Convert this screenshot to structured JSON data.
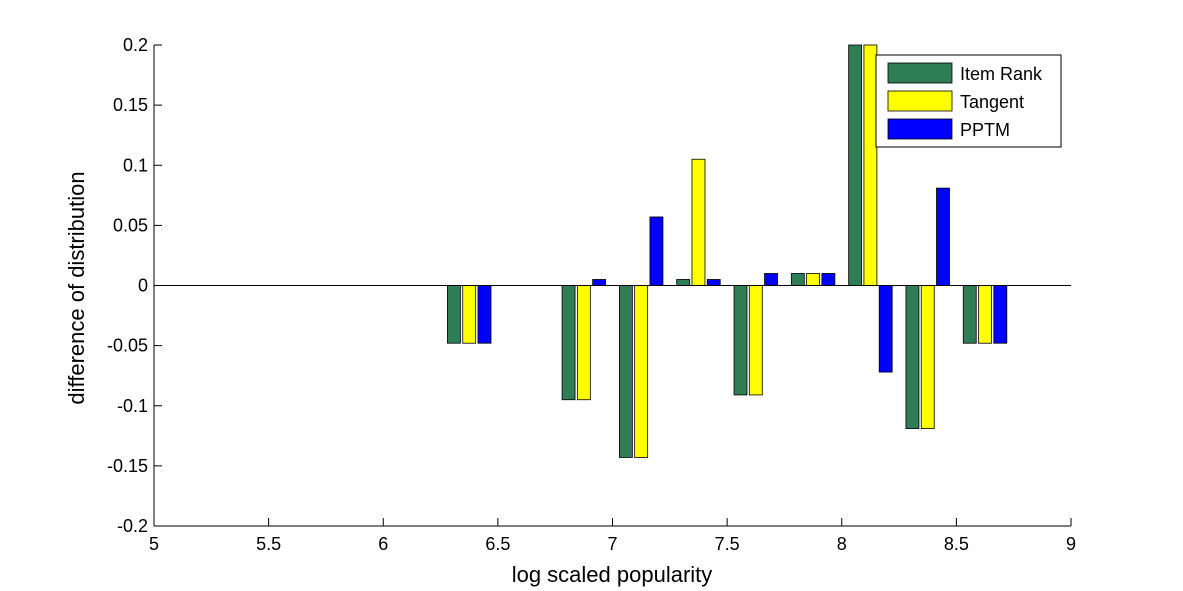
{
  "chart_data": {
    "type": "bar",
    "title": "",
    "xlabel": "log scaled popularity",
    "ylabel": "difference of distribution",
    "xlim": [
      5,
      9
    ],
    "ylim": [
      -0.2,
      0.2
    ],
    "xticks": [
      "5",
      "5.5",
      "6",
      "6.5",
      "7",
      "7.5",
      "8",
      "8.5",
      "9"
    ],
    "yticks": [
      "-0.2",
      "-0.15",
      "-0.1",
      "-0.05",
      "0",
      "0.05",
      "0.1",
      "0.15",
      "0.2"
    ],
    "legend_position": "top-right",
    "x": [
      6.375,
      6.875,
      7.125,
      7.375,
      7.625,
      7.875,
      8.125,
      8.375,
      8.625
    ],
    "series": [
      {
        "name": "Item Rank",
        "color": "#2e7d55",
        "values": [
          -0.048,
          -0.095,
          -0.143,
          0.005,
          -0.091,
          0.01,
          0.2,
          -0.119,
          -0.048
        ]
      },
      {
        "name": "Tangent",
        "color": "#ffff00",
        "values": [
          -0.048,
          -0.095,
          -0.143,
          0.105,
          -0.091,
          0.01,
          0.2,
          -0.119,
          -0.048
        ]
      },
      {
        "name": "PPTM",
        "color": "#0000ff",
        "values": [
          -0.048,
          0.005,
          0.057,
          0.005,
          0.01,
          0.01,
          -0.072,
          0.081,
          -0.048
        ]
      }
    ]
  }
}
